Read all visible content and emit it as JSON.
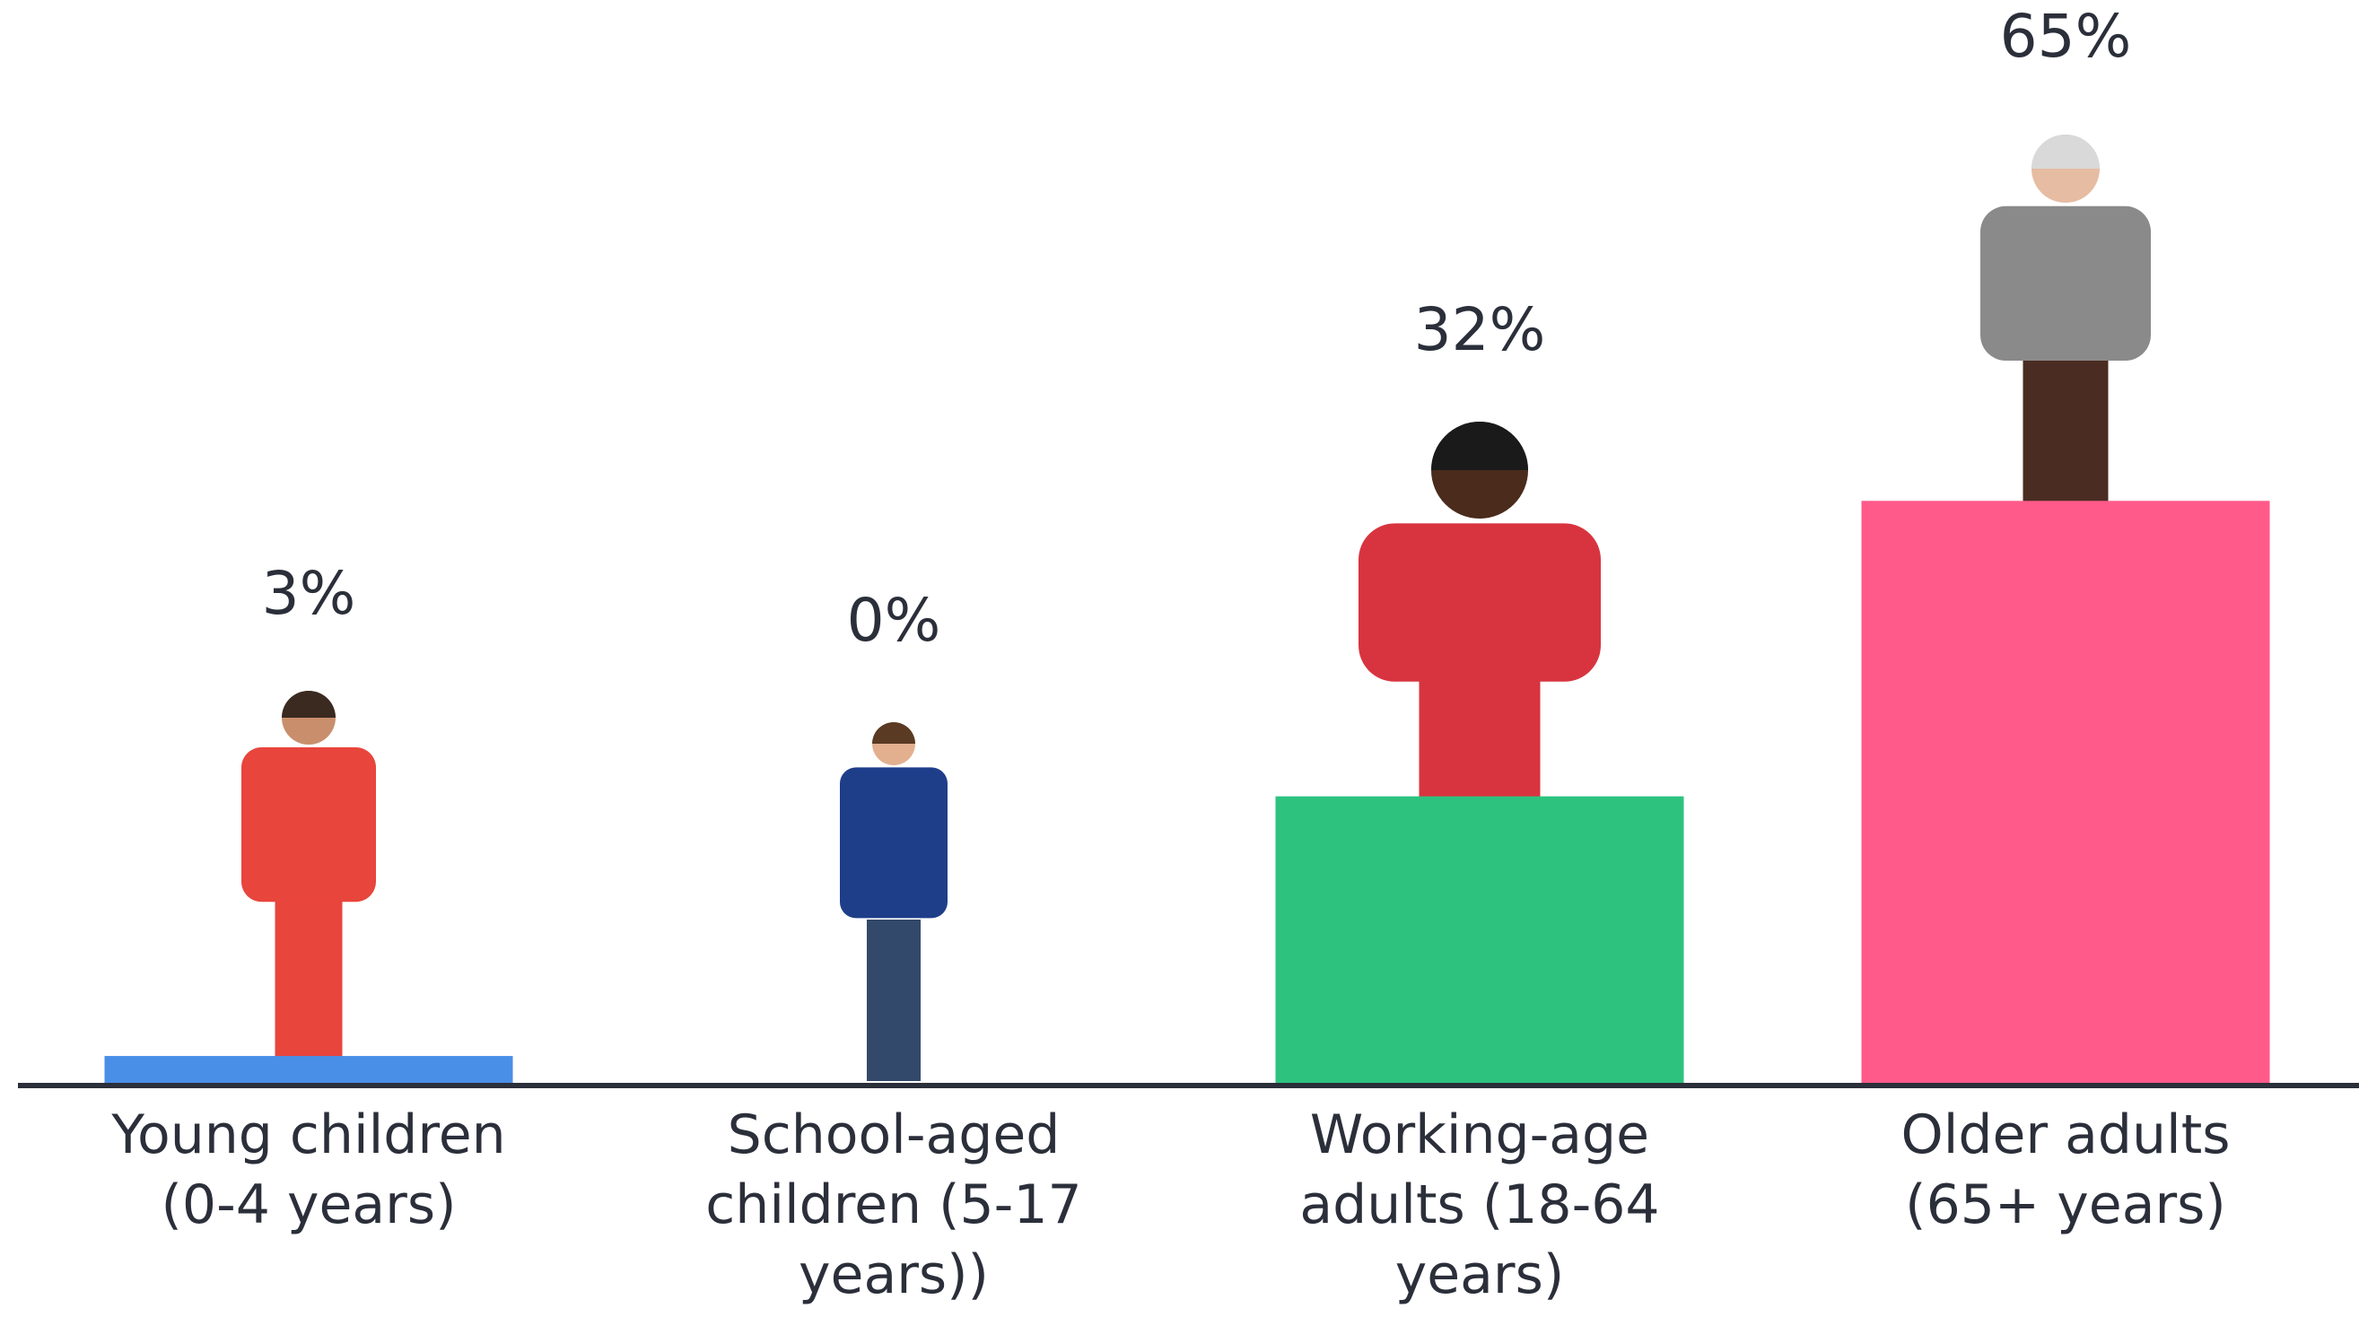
{
  "chart_data": {
    "type": "bar",
    "categories": [
      "Young children (0-4 years)",
      "School-aged children (5-17 years))",
      "Working-age adults (18-64 years)",
      "Older adults (65+ years)"
    ],
    "values": [
      3,
      0,
      32,
      65
    ],
    "value_labels": [
      "3%",
      "0%",
      "32%",
      "65%"
    ],
    "colors": [
      "#4a8fe7",
      "#4a8fe7",
      "#2dc37f",
      "#ff5a8a"
    ]
  }
}
